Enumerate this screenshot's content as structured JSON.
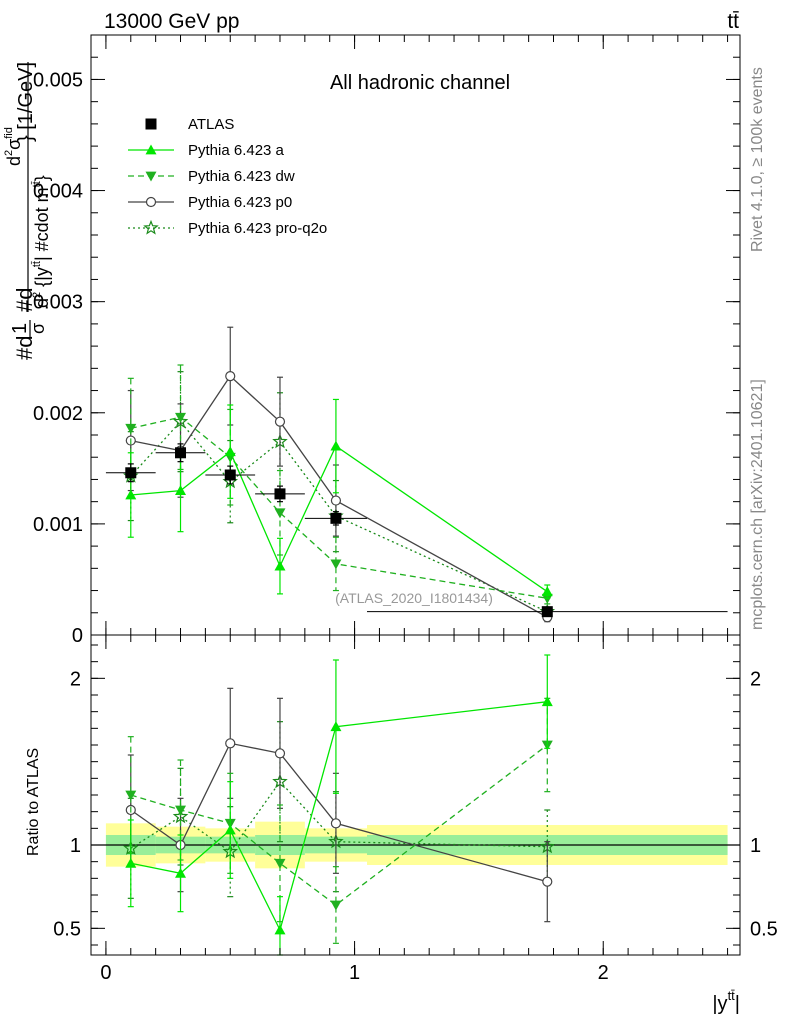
{
  "header": {
    "left": "13000 GeV pp",
    "right": "tt̄"
  },
  "side": {
    "rivet": "Rivet 4.1.0, ≥ 100k events",
    "mcplots": "mcplots.cern.ch [arXiv:2401.10621]"
  },
  "chart_data": [
    {
      "type": "scatter",
      "title": "All hadronic channel",
      "watermark": "(ATLAS_2020_I1801434)",
      "ylabel": "#d\\frac{1}{σ}#d\\frac{d^{2}σ^{fid}}{d^{2} {|y^{tt̄}| #cdot m^{tt̄}}} [1/GeV]",
      "xlim": [
        -0.06,
        2.55
      ],
      "ylim": [
        0,
        0.0054
      ],
      "yticks": [
        0,
        0.001,
        0.002,
        0.003,
        0.004,
        0.005
      ],
      "ytick_labels": [
        "0",
        "0.001",
        "0.002",
        "0.003",
        "0.004",
        "0.005"
      ],
      "x": [
        0.1,
        0.3,
        0.5,
        0.7,
        0.925,
        1.775
      ],
      "xerr": [
        0.1,
        0.1,
        0.1,
        0.1,
        0.125,
        0.725
      ],
      "series": [
        {
          "name": "ATLAS",
          "marker": "square",
          "color": "#000000",
          "line": "none",
          "values": [
            0.00146,
            0.00164,
            0.00144,
            0.00127,
            0.00105,
            0.00021
          ],
          "err": [
            8e-05,
            8e-05,
            8e-05,
            7e-05,
            6e-05,
            2e-05
          ]
        },
        {
          "name": "Pythia 6.423 a",
          "marker": "triangle-up",
          "color": "#00e600",
          "line": "solid",
          "values": [
            0.00126,
            0.0013,
            0.00165,
            0.00062,
            0.0017,
            0.00039
          ],
          "err": [
            0.00038,
            0.00037,
            0.00042,
            0.00025,
            0.00042,
            6e-05
          ]
        },
        {
          "name": "Pythia 6.423 dw",
          "marker": "triangle-down",
          "color": "#20b020",
          "line": "dashed",
          "values": [
            0.00186,
            0.00196,
            0.0016,
            0.0011,
            0.00064,
            0.00033
          ],
          "err": [
            0.00045,
            0.00047,
            0.00043,
            0.00038,
            0.00024,
            5e-05
          ]
        },
        {
          "name": "Pythia 6.423 p0",
          "marker": "circle-open",
          "color": "#444444",
          "line": "solid",
          "values": [
            0.00175,
            0.00166,
            0.00233,
            0.00192,
            0.00121,
            0.00016
          ],
          "err": [
            0.00045,
            0.00042,
            0.00044,
            0.0004,
            0.00032,
            4e-05
          ]
        },
        {
          "name": "Pythia 6.423 pro-q2o",
          "marker": "star-open",
          "color": "#1a8a1a",
          "line": "dotted",
          "values": [
            0.00143,
            0.00192,
            0.00138,
            0.00174,
            0.00107,
            0.00021
          ],
          "err": [
            0.0004,
            0.00045,
            0.00037,
            0.00044,
            0.00032,
            4e-05
          ]
        }
      ]
    },
    {
      "type": "scatter",
      "ylabel": "Ratio to ATLAS",
      "xlabel": "|y^{tt̄}|",
      "ylim": [
        0.34,
        2.26
      ],
      "yticks": [
        0.5,
        1,
        2
      ],
      "ytick_labels": [
        "0.5",
        "1",
        "2"
      ],
      "xticks": [
        0,
        1,
        2
      ],
      "xtick_labels": [
        "0",
        "1",
        "2"
      ],
      "bands": [
        {
          "x0": 0.0,
          "x1": 0.2,
          "inner": [
            0.94,
            1.06
          ],
          "outer": [
            0.87,
            1.13
          ]
        },
        {
          "x0": 0.2,
          "x1": 0.4,
          "inner": [
            0.95,
            1.05
          ],
          "outer": [
            0.89,
            1.11
          ]
        },
        {
          "x0": 0.4,
          "x1": 0.6,
          "inner": [
            0.95,
            1.05
          ],
          "outer": [
            0.9,
            1.1
          ]
        },
        {
          "x0": 0.6,
          "x1": 0.8,
          "inner": [
            0.94,
            1.06
          ],
          "outer": [
            0.86,
            1.14
          ]
        },
        {
          "x0": 0.8,
          "x1": 1.05,
          "inner": [
            0.95,
            1.05
          ],
          "outer": [
            0.9,
            1.1
          ]
        },
        {
          "x0": 1.05,
          "x1": 2.5,
          "inner": [
            0.94,
            1.06
          ],
          "outer": [
            0.88,
            1.12
          ]
        }
      ],
      "series": [
        {
          "name": "Pythia 6.423 a",
          "values": [
            0.89,
            0.83,
            1.09,
            0.49,
            1.71,
            1.86
          ],
          "err": [
            0.26,
            0.23,
            0.29,
            0.2,
            0.4,
            0.28
          ]
        },
        {
          "name": "Pythia 6.423 dw",
          "values": [
            1.3,
            1.21,
            1.13,
            0.89,
            0.64,
            1.6
          ],
          "err": [
            0.35,
            0.3,
            0.3,
            0.35,
            0.23,
            0.28
          ]
        },
        {
          "name": "Pythia 6.423 p0",
          "values": [
            1.21,
            1.0,
            1.61,
            1.55,
            1.13,
            0.78
          ],
          "err": [
            0.33,
            0.28,
            0.33,
            0.33,
            0.3,
            0.24
          ]
        },
        {
          "name": "Pythia 6.423 pro-q2o",
          "values": [
            0.98,
            1.17,
            0.96,
            1.38,
            1.02,
            0.99
          ],
          "err": [
            0.3,
            0.29,
            0.27,
            0.36,
            0.3,
            0.22
          ]
        }
      ]
    }
  ]
}
